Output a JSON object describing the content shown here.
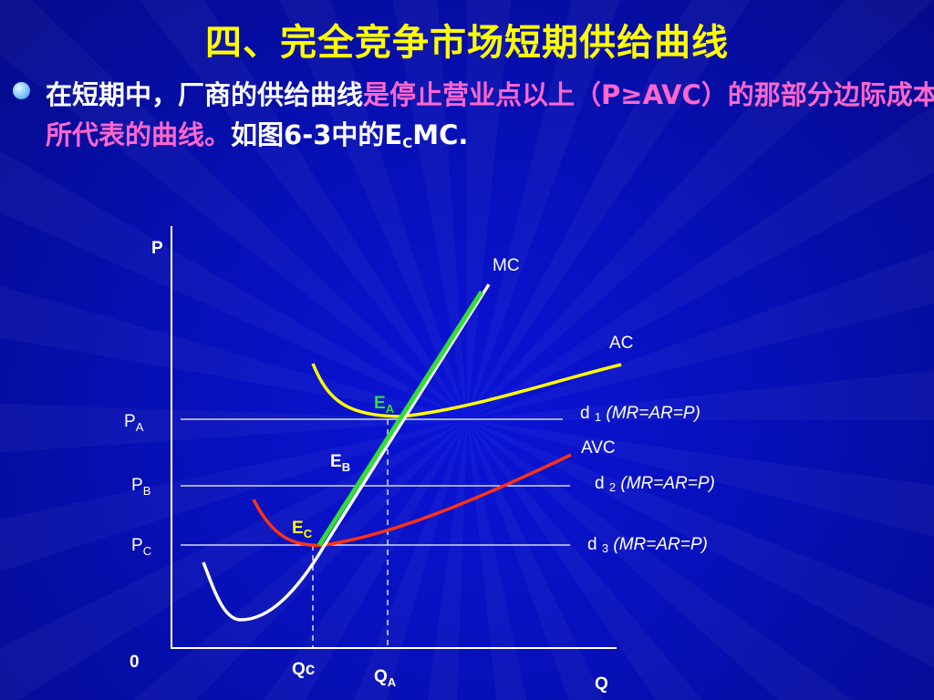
{
  "title": "四、完全竞争市场短期供给曲线",
  "bullet": {
    "part1": "在短期中，厂商的供给曲线",
    "part2": "是停止营业点以上（P≥AVC）的那部分边际成本所代表的曲线。",
    "part3": "如图6-3中的",
    "ec_main": "E",
    "ec_sub": "C",
    "part4": "MC."
  },
  "diagram": {
    "y_axis_label": "P",
    "x_axis_label": "Q",
    "origin_label": "0",
    "curves": {
      "mc": "MC",
      "ac": "AC",
      "avc": "AVC"
    },
    "price_levels": [
      {
        "main": "P",
        "sub": "A",
        "demand_main": "d ",
        "demand_sub": "1",
        "demand_eq": " (MR=AR=P)"
      },
      {
        "main": "P",
        "sub": "B",
        "demand_main": "d ",
        "demand_sub": "2",
        "demand_eq": " (MR=AR=P)"
      },
      {
        "main": "P",
        "sub": "C",
        "demand_main": "d ",
        "demand_sub": "3",
        "demand_eq": " (MR=AR=P)"
      }
    ],
    "points": [
      {
        "main": "E",
        "sub": "A"
      },
      {
        "main": "E",
        "sub": "B"
      },
      {
        "main": "E",
        "sub": "C"
      }
    ],
    "quantities": [
      {
        "main": "Q",
        "sub": "c"
      },
      {
        "main": "Q",
        "sub": "A"
      }
    ],
    "colors": {
      "mc": "#ffffff",
      "supply": "#33dd33",
      "ac": "#ffff00",
      "avc": "#ff3311",
      "point_label_a": "#33dd33",
      "point_label_c": "#ffff00"
    }
  }
}
